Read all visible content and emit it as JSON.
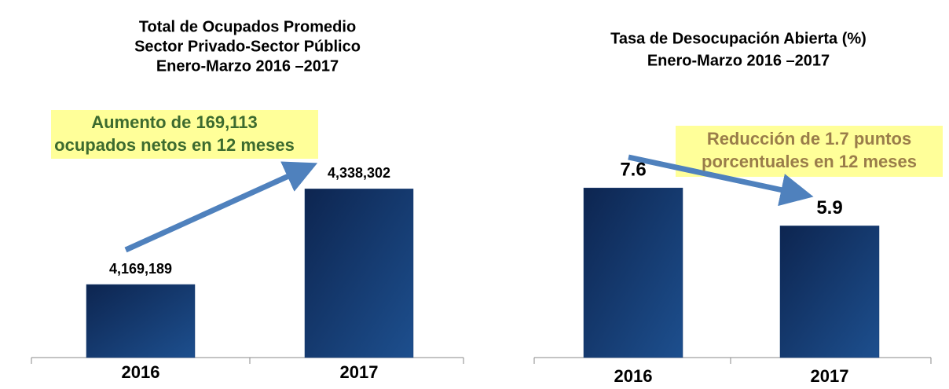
{
  "chart_data": [
    {
      "type": "bar",
      "title": [
        "Total de Ocupados Promedio",
        "Sector Privado-Sector Público",
        "Enero-Marzo 2016 –2017"
      ],
      "categories": [
        "2016",
        "2017"
      ],
      "values": [
        4169189,
        4338302
      ],
      "value_labels": [
        "4,169,189",
        "4,338,302"
      ],
      "ylim": [
        4040000,
        4400000
      ],
      "annotation": [
        "Aumento de 169,113",
        "ocupados netos en 12 meses"
      ],
      "color": "#163a70"
    },
    {
      "type": "bar",
      "title": [
        "Tasa de Desocupación Abierta (%)",
        "Enero-Marzo 2016 –2017"
      ],
      "categories": [
        "2016",
        "2017"
      ],
      "values": [
        7.6,
        5.9
      ],
      "ylim": [
        0,
        10
      ],
      "annotation": [
        "Reducción de 1.7 puntos",
        "porcentuales en 12 meses"
      ],
      "color": "#163a70"
    }
  ]
}
